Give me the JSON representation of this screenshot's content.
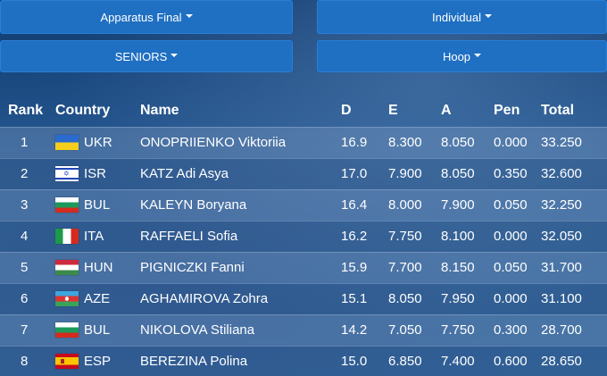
{
  "filters": {
    "competition": "Apparatus Final",
    "type": "Individual",
    "category": "SENIORS",
    "apparatus": "Hoop"
  },
  "table": {
    "headers": {
      "rank": "Rank",
      "country": "Country",
      "name": "Name",
      "d": "D",
      "e": "E",
      "a": "A",
      "pen": "Pen",
      "total": "Total"
    },
    "rows": [
      {
        "rank": "1",
        "flag": "flag-ukr",
        "code": "UKR",
        "name": "ONOPRIIENKO Viktoriia",
        "d": "16.9",
        "e": "8.300",
        "a": "8.050",
        "pen": "0.000",
        "total": "33.250"
      },
      {
        "rank": "2",
        "flag": "flag-isr",
        "code": "ISR",
        "name": "KATZ Adi Asya",
        "d": "17.0",
        "e": "7.900",
        "a": "8.050",
        "pen": "0.350",
        "total": "32.600"
      },
      {
        "rank": "3",
        "flag": "flag-bul",
        "code": "BUL",
        "name": "KALEYN Boryana",
        "d": "16.4",
        "e": "8.000",
        "a": "7.900",
        "pen": "0.050",
        "total": "32.250"
      },
      {
        "rank": "4",
        "flag": "flag-ita",
        "code": "ITA",
        "name": "RAFFAELI Sofia",
        "d": "16.2",
        "e": "7.750",
        "a": "8.100",
        "pen": "0.000",
        "total": "32.050"
      },
      {
        "rank": "5",
        "flag": "flag-hun",
        "code": "HUN",
        "name": "PIGNICZKI Fanni",
        "d": "15.9",
        "e": "7.700",
        "a": "8.150",
        "pen": "0.050",
        "total": "31.700"
      },
      {
        "rank": "6",
        "flag": "flag-aze",
        "code": "AZE",
        "name": "AGHAMIROVA Zohra",
        "d": "15.1",
        "e": "8.050",
        "a": "7.950",
        "pen": "0.000",
        "total": "31.100"
      },
      {
        "rank": "7",
        "flag": "flag-bul",
        "code": "BUL",
        "name": "NIKOLOVA Stiliana",
        "d": "14.2",
        "e": "7.050",
        "a": "7.750",
        "pen": "0.300",
        "total": "28.700"
      },
      {
        "rank": "8",
        "flag": "flag-esp",
        "code": "ESP",
        "name": "BEREZINA Polina",
        "d": "15.0",
        "e": "6.850",
        "a": "7.400",
        "pen": "0.600",
        "total": "28.650"
      }
    ]
  }
}
